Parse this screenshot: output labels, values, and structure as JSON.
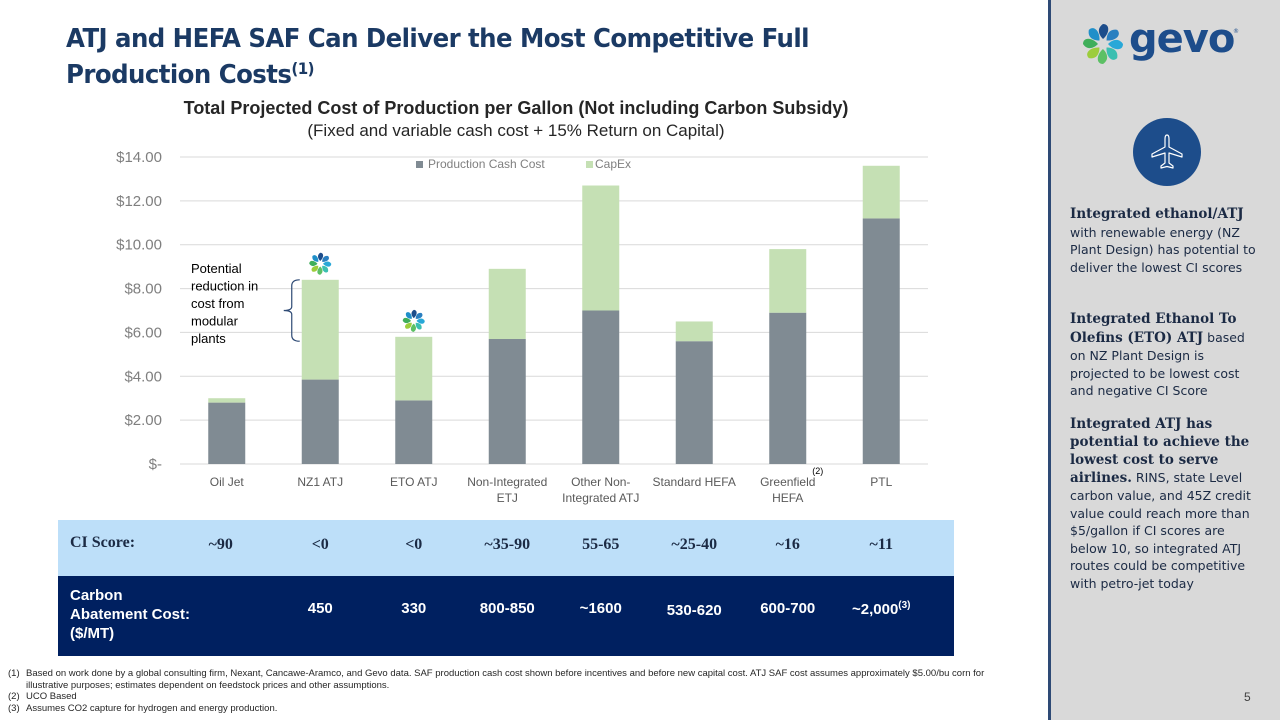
{
  "slide": {
    "title": "ATJ and HEFA SAF Can Deliver the Most Competitive Full Production Costs",
    "title_sup": "(1)",
    "page_number": "5"
  },
  "chart_data": {
    "type": "bar",
    "stacked": true,
    "title": "Total Projected Cost of Production per Gallon (Not including Carbon Subsidy)",
    "subtitle": "(Fixed and variable cash cost + 15% Return on Capital)",
    "xlabel": "",
    "ylabel": "",
    "ylim": [
      0,
      14
    ],
    "yticks": [
      0,
      2,
      4,
      6,
      8,
      10,
      12,
      14
    ],
    "ytick_labels": [
      "$-",
      "$2.00",
      "$4.00",
      "$6.00",
      "$8.00",
      "$10.00",
      "$12.00",
      "$14.00"
    ],
    "grid": true,
    "legend_position": "top-center",
    "categories": [
      "Oil Jet",
      "NZ1 ATJ",
      "ETO ATJ",
      "Non-Integrated ETJ",
      "Other Non-Integrated ATJ",
      "Standard HEFA",
      "Greenfield HEFA",
      "PTL"
    ],
    "category_lines": [
      [
        "Oil Jet"
      ],
      [
        "NZ1 ATJ"
      ],
      [
        "ETO ATJ"
      ],
      [
        "Non-Integrated",
        "ETJ"
      ],
      [
        "Other Non-",
        "Integrated ATJ"
      ],
      [
        "Standard HEFA"
      ],
      [
        "Greenfield",
        "HEFA"
      ],
      [
        "PTL"
      ]
    ],
    "category_footnotes": [
      "",
      "",
      "",
      "",
      "",
      "",
      "(2)",
      ""
    ],
    "series": [
      {
        "name": "Production Cash Cost",
        "color": "#808b93",
        "values": [
          2.8,
          3.85,
          2.9,
          5.7,
          7.0,
          5.6,
          6.9,
          11.2
        ]
      },
      {
        "name": "CapEx",
        "color": "#c5e0b4",
        "values": [
          0.2,
          4.55,
          2.9,
          3.2,
          5.7,
          0.9,
          2.9,
          2.4
        ]
      }
    ],
    "gevo_marker_categories": [
      "NZ1 ATJ",
      "ETO ATJ"
    ],
    "annotation": {
      "lines": [
        "Potential",
        "reduction in",
        "cost from",
        "modular",
        "plants"
      ],
      "target_category": "NZ1 ATJ",
      "bracket_range": [
        5.6,
        8.4
      ]
    }
  },
  "table": {
    "ci_label": "CI Score:",
    "ci_values": [
      "~90",
      "<0",
      "<0",
      "~35-90",
      "55-65",
      "~25-40",
      "~16",
      "~11"
    ],
    "cac_label_lines": [
      "Carbon",
      "Abatement Cost:",
      "($/MT)"
    ],
    "cac_values": [
      "",
      "450",
      "330",
      "800-850",
      "~1600",
      "530-620",
      "600-700",
      "~2,000"
    ],
    "cac_sups": [
      "",
      "",
      "",
      "",
      "",
      "",
      "",
      "(3)"
    ]
  },
  "footnotes": [
    {
      "num": "(1)",
      "text": "Based on work done by a global consulting firm, Nexant, Cancawe-Aramco, and Gevo data.  SAF production cash cost shown before incentives and before new capital cost.  ATJ SAF cost assumes approximately $5.00/bu corn for illustrative purposes; estimates dependent on feedstock prices and other assumptions."
    },
    {
      "num": "(2)",
      "text": "UCO Based"
    },
    {
      "num": "(3)",
      "text": "Assumes CO2 capture for hydrogen and energy production."
    }
  ],
  "sidebar": {
    "logo_text": "gevo",
    "logo_reg": "®",
    "icon": "airplane-icon",
    "block1_bold": "Integrated ethanol/ATJ",
    "block1_text": " with renewable energy (NZ Plant Design) has potential to deliver the lowest CI scores",
    "block2_bold": "Integrated Ethanol To Olefins (ETO) ATJ",
    "block2_text": " based on NZ Plant Design is projected to be lowest cost and negative CI Score",
    "block3_bold": "Integrated ATJ has potential to achieve the lowest cost to serve airlines.",
    "block3_text": "  RINS, state Level carbon value, and 45Z credit value could reach more than $5/gallon if CI scores are below 10, so integrated ATJ routes could be competitive with petro-jet today"
  }
}
